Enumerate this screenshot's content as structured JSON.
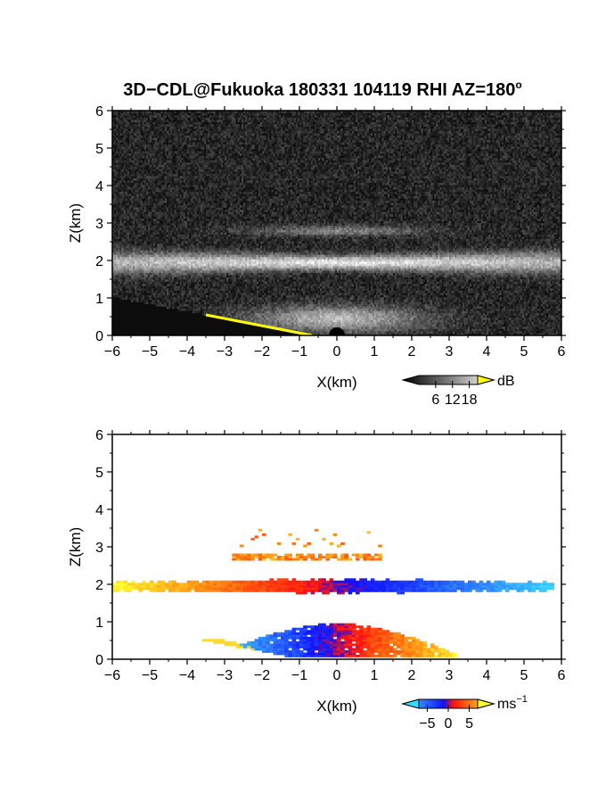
{
  "chart_data": [
    {
      "type": "heatmap",
      "title": "3D−CDL@Fukuoka 180331 104119 RHI AZ=180",
      "title_sup": "o",
      "xlabel": "X(km)",
      "ylabel": "Z(km)",
      "xlim": [
        -6,
        6
      ],
      "ylim": [
        0,
        6
      ],
      "xticks": [
        "−6",
        "−5",
        "−4",
        "−3",
        "−2",
        "−1",
        "0",
        "1",
        "2",
        "3",
        "4",
        "5",
        "6"
      ],
      "yticks": [
        "0",
        "1",
        "2",
        "3",
        "4",
        "5",
        "6"
      ],
      "colorbar": {
        "unit": "dB",
        "ticks": [
          "6",
          "12",
          "18"
        ],
        "range": [
          0,
          21
        ],
        "colormap": "grayscale"
      },
      "features": [
        {
          "name": "main-layer",
          "z_center": 1.95,
          "x_range": [
            -6,
            6
          ],
          "peak_dB": 17
        },
        {
          "name": "upper-layer",
          "z_center": 2.8,
          "x_range": [
            -3.5,
            3.5
          ],
          "peak_dB": 8
        },
        {
          "name": "near-ground-fan",
          "z_range": [
            0,
            1.0
          ],
          "x_range": [
            -3.2,
            3.5
          ],
          "peak_dB": 14
        },
        {
          "name": "ground-line",
          "color": "#ffff00",
          "points": [
            [
              -3.5,
              0.55
            ],
            [
              -0.6,
              0.0
            ]
          ]
        }
      ]
    },
    {
      "type": "heatmap",
      "xlabel": "X(km)",
      "ylabel": "Z(km)",
      "xlim": [
        -6,
        6
      ],
      "ylim": [
        0,
        6
      ],
      "xticks": [
        "−6",
        "−5",
        "−4",
        "−3",
        "−2",
        "−1",
        "0",
        "1",
        "2",
        "3",
        "4",
        "5",
        "6"
      ],
      "yticks": [
        "0",
        "1",
        "2",
        "3",
        "4",
        "5",
        "6"
      ],
      "colorbar": {
        "unit": "ms",
        "unit_sup": "−1",
        "ticks": [
          "−5",
          "0",
          "5"
        ],
        "range": [
          -7,
          7
        ],
        "colormap": "cyan-blue-red-yellow"
      },
      "features": [
        {
          "name": "main-layer",
          "z_center": 1.95,
          "x_range": [
            -6,
            5.8
          ],
          "velocity_left": 6,
          "velocity_right": -6
        },
        {
          "name": "upper-layer",
          "z_center": 2.75,
          "x_range": [
            -2.8,
            1.2
          ],
          "velocity": 4
        },
        {
          "name": "lower-layer",
          "z_range": [
            0.05,
            1.0
          ],
          "x_range": [
            -3.5,
            3.2
          ],
          "velocity_left": -6,
          "velocity_right": 6
        }
      ]
    }
  ],
  "colors": {
    "axis": "#000000",
    "ground_line": "#ffff00",
    "background": "#ffffff"
  }
}
